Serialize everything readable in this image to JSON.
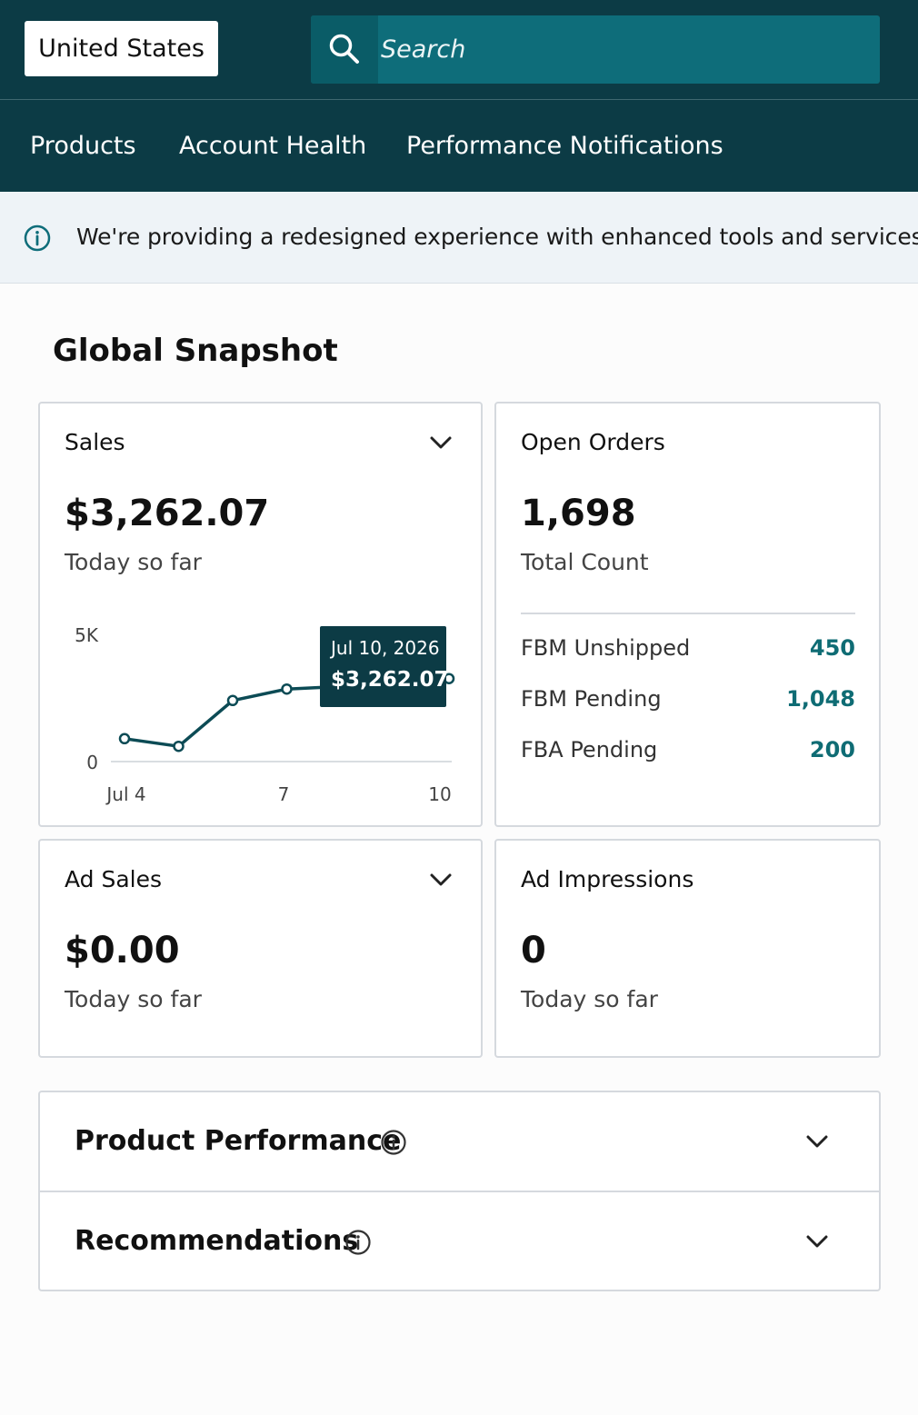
{
  "header": {
    "country": "United States",
    "search_placeholder": "Search",
    "search_icon": "search-icon"
  },
  "nav": {
    "items": [
      "Products",
      "Account Health",
      "Performance Notifications"
    ]
  },
  "banner": {
    "icon": "info-icon",
    "text": "We're providing a redesigned experience with enhanced tools and services."
  },
  "snapshot": {
    "title": "Global Snapshot",
    "sales": {
      "title": "Sales",
      "value": "$3,262.07",
      "subtitle": "Today so far",
      "tooltip": {
        "date": "Jul 10, 2026",
        "value": "$3,262.07"
      }
    },
    "open_orders": {
      "title": "Open Orders",
      "value": "1,698",
      "subtitle": "Total Count",
      "rows": [
        {
          "label": "FBM Unshipped",
          "value": "450"
        },
        {
          "label": "FBM Pending",
          "value": "1,048"
        },
        {
          "label": "FBA Pending",
          "value": "200"
        }
      ]
    },
    "ad_sales": {
      "title": "Ad Sales",
      "value": "$0.00",
      "subtitle": "Today so far"
    },
    "ad_impressions": {
      "title": "Ad Impressions",
      "value": "0",
      "subtitle": "Today so far"
    }
  },
  "sections": [
    {
      "title": "Product Performance"
    },
    {
      "title": "Recommendations"
    }
  ],
  "colors": {
    "header_bg": "#0c3b45",
    "search_bg": "#0e6d7a",
    "accent_teal": "#0f6c74",
    "banner_bg": "#eef3f7"
  },
  "chart_data": {
    "type": "line",
    "title": "",
    "x": [
      4,
      5,
      6,
      7,
      8,
      9,
      10
    ],
    "y": [
      900,
      600,
      2400,
      2850,
      2950,
      2700,
      3262.07
    ],
    "x_tick_labels": [
      "Jul 4",
      "7",
      "10"
    ],
    "y_tick_labels": [
      "5K",
      "0"
    ],
    "ylim": [
      0,
      5000
    ],
    "xlim": [
      4,
      10
    ],
    "grid": false,
    "legend": "none"
  }
}
